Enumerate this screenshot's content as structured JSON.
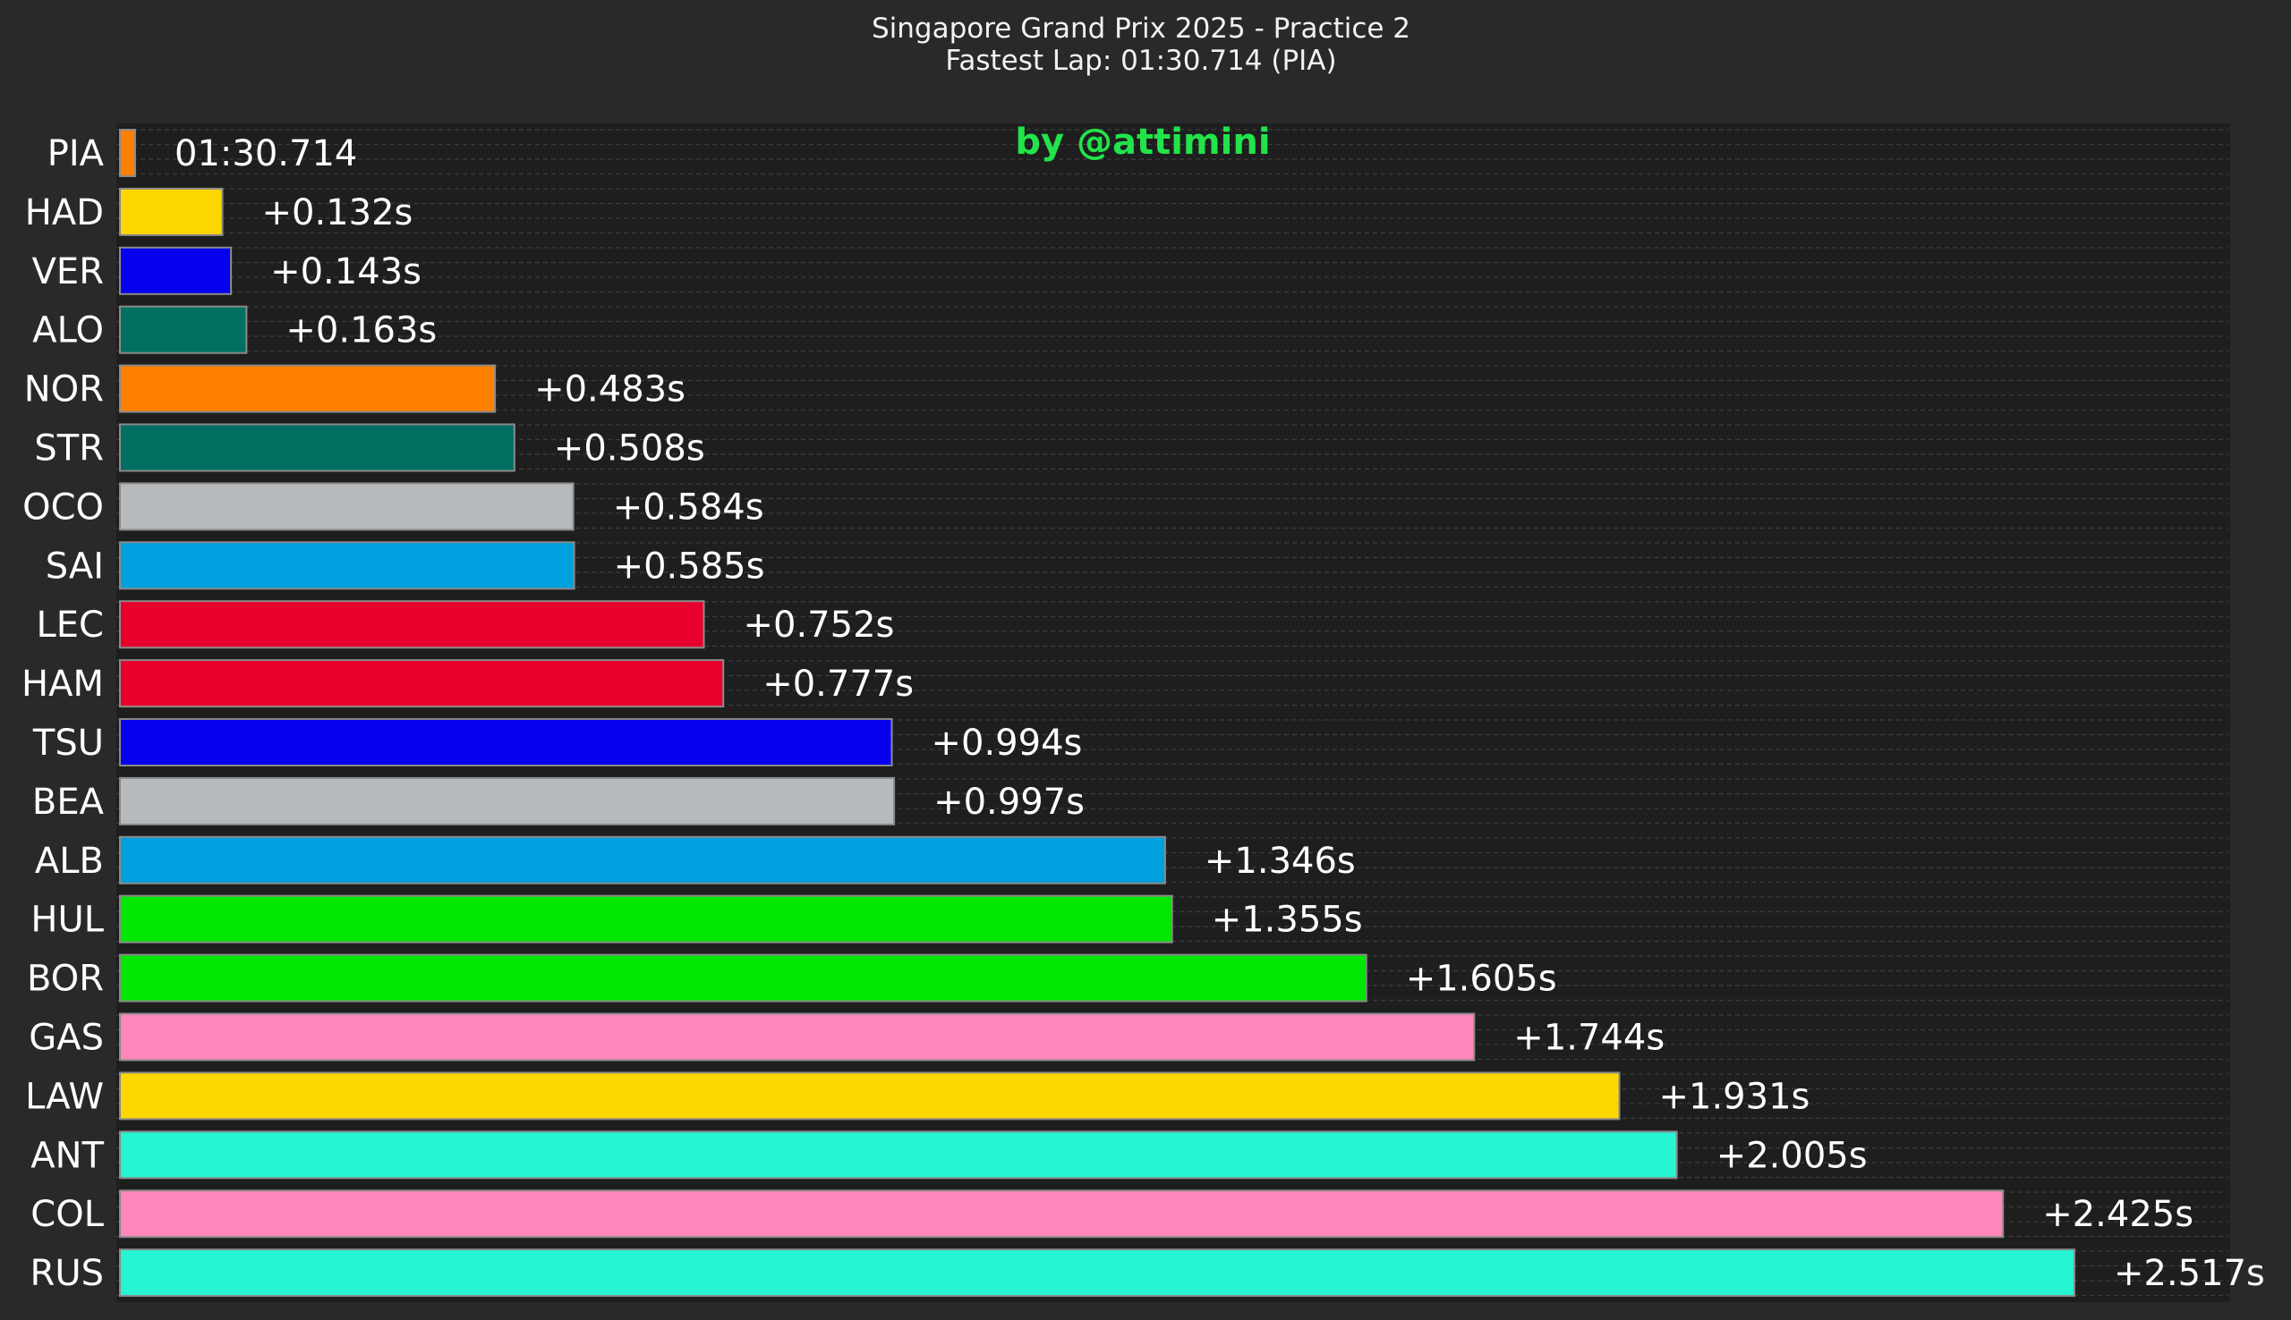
{
  "chart_data": {
    "type": "bar",
    "orientation": "horizontal",
    "title": "Singapore Grand Prix 2025 - Practice 2",
    "subtitle": "Fastest Lap: 01:30.714 (PIA)",
    "watermark": "by @attimini",
    "xlabel": "",
    "ylabel": "",
    "unit": "s",
    "xlim": [
      0,
      2.6
    ],
    "grid": "horizontal dashed",
    "background_color": "#292929",
    "plot_background_color": "#1e1e1e",
    "categories": [
      "PIA",
      "HAD",
      "VER",
      "ALO",
      "NOR",
      "STR",
      "OCO",
      "SAI",
      "LEC",
      "HAM",
      "TSU",
      "BEA",
      "ALB",
      "HUL",
      "BOR",
      "GAS",
      "LAW",
      "ANT",
      "COL",
      "RUS"
    ],
    "values": [
      0,
      0.132,
      0.143,
      0.163,
      0.483,
      0.508,
      0.584,
      0.585,
      0.752,
      0.777,
      0.994,
      0.997,
      1.346,
      1.355,
      1.605,
      1.744,
      1.931,
      2.005,
      2.425,
      2.517
    ],
    "labels": [
      "01:30.714",
      "+0.132s",
      "+0.143s",
      "+0.163s",
      "+0.483s",
      "+0.508s",
      "+0.584s",
      "+0.585s",
      "+0.752s",
      "+0.777s",
      "+0.994s",
      "+0.997s",
      "+1.346s",
      "+1.355s",
      "+1.605s",
      "+1.744s",
      "+1.931s",
      "+2.005s",
      "+2.425s",
      "+2.517s"
    ],
    "colors": [
      "#ff8000",
      "#fed700",
      "#0600ef",
      "#006f62",
      "#ff8000",
      "#006f62",
      "#b6babd",
      "#00a0de",
      "#e8002d",
      "#e8002d",
      "#0600ef",
      "#b6babd",
      "#00a0de",
      "#00e701",
      "#00e701",
      "#ff87bc",
      "#fed700",
      "#27f4d2",
      "#ff87bc",
      "#27f4d2"
    ]
  }
}
